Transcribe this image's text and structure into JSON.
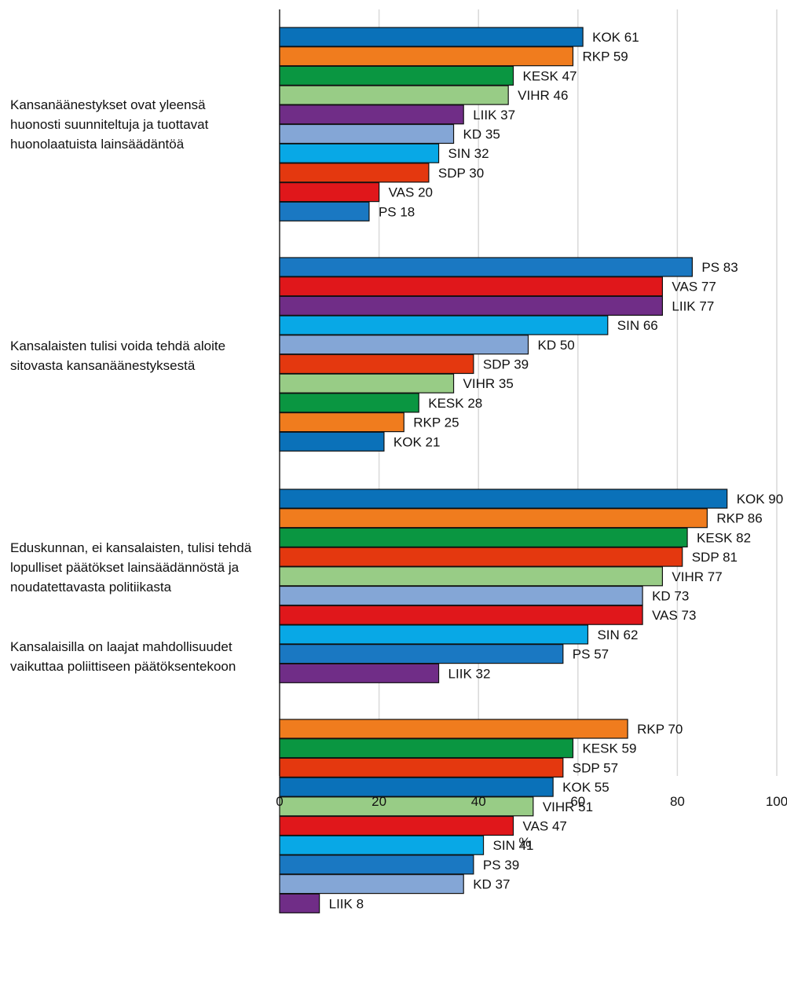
{
  "chart_data": {
    "type": "bar",
    "orientation": "horizontal",
    "xlabel": "%",
    "xlim": [
      0,
      100
    ],
    "xticks": [
      0,
      20,
      40,
      60,
      80,
      100
    ],
    "grid": "vertical",
    "groups": [
      {
        "label": "Kansanäänestykset ovat yleensä huonosti suunniteltuja ja tuottavat huonolaatuista lainsäädäntöä",
        "bars": [
          {
            "party": "KOK",
            "value": 61,
            "text": "KOK  61"
          },
          {
            "party": "RKP",
            "value": 59,
            "text": "RKP 59"
          },
          {
            "party": "KESK",
            "value": 47,
            "text": "KESK 47"
          },
          {
            "party": "VIHR",
            "value": 46,
            "text": "VIHR 46"
          },
          {
            "party": "LIIK",
            "value": 37,
            "text": "LIIK 37"
          },
          {
            "party": "KD",
            "value": 35,
            "text": "KD 35"
          },
          {
            "party": "SIN",
            "value": 32,
            "text": "SIN 32"
          },
          {
            "party": "SDP",
            "value": 30,
            "text": "SDP 30"
          },
          {
            "party": "VAS",
            "value": 20,
            "text": "VAS 20"
          },
          {
            "party": "PS",
            "value": 18,
            "text": "PS 18"
          }
        ]
      },
      {
        "label": "Kansalaisten tulisi voida tehdä aloite sitovasta kansanäänestyksestä",
        "bars": [
          {
            "party": "PS",
            "value": 83,
            "text": "PS 83"
          },
          {
            "party": "VAS",
            "value": 77,
            "text": "VAS 77"
          },
          {
            "party": "LIIK",
            "value": 77,
            "text": "LIIK 77"
          },
          {
            "party": "SIN",
            "value": 66,
            "text": "SIN 66"
          },
          {
            "party": "KD",
            "value": 50,
            "text": "KD 50"
          },
          {
            "party": "SDP",
            "value": 39,
            "text": "SDP 39"
          },
          {
            "party": "VIHR",
            "value": 35,
            "text": "VIHR 35"
          },
          {
            "party": "KESK",
            "value": 28,
            "text": "KESK 28"
          },
          {
            "party": "RKP",
            "value": 25,
            "text": "RKP 25"
          },
          {
            "party": "KOK",
            "value": 21,
            "text": "KOK  21"
          }
        ]
      },
      {
        "label": "Eduskunnan, ei kansalaisten, tulisi tehdä lopulliset päätökset lainsäädännöstä ja noudatettavasta politiikasta",
        "bars": [
          {
            "party": "KOK",
            "value": 90,
            "text": "KOK  90"
          },
          {
            "party": "RKP",
            "value": 86,
            "text": "RKP 86"
          },
          {
            "party": "KESK",
            "value": 82,
            "text": "KESK 82"
          },
          {
            "party": "SDP",
            "value": 81,
            "text": "SDP 81"
          },
          {
            "party": "VIHR",
            "value": 77,
            "text": "VIHR 77"
          },
          {
            "party": "KD",
            "value": 73,
            "text": "KD 73"
          },
          {
            "party": "VAS",
            "value": 73,
            "text": "VAS 73"
          },
          {
            "party": "SIN",
            "value": 62,
            "text": "SIN 62"
          },
          {
            "party": "PS",
            "value": 57,
            "text": "PS 57"
          },
          {
            "party": "LIIK",
            "value": 32,
            "text": "LIIK 32"
          }
        ]
      },
      {
        "label": "Kansalaisilla on laajat mahdollisuudet vaikuttaa poliittiseen päätöksentekoon",
        "bars": [
          {
            "party": "RKP",
            "value": 70,
            "text": "RKP 70"
          },
          {
            "party": "KESK",
            "value": 59,
            "text": "KESK 59"
          },
          {
            "party": "SDP",
            "value": 57,
            "text": "SDP 57"
          },
          {
            "party": "KOK",
            "value": 55,
            "text": "KOK  55"
          },
          {
            "party": "VIHR",
            "value": 51,
            "text": "VIHR 51"
          },
          {
            "party": "VAS",
            "value": 47,
            "text": "VAS 47"
          },
          {
            "party": "SIN",
            "value": 41,
            "text": "SIN 41"
          },
          {
            "party": "PS",
            "value": 39,
            "text": "PS 39"
          },
          {
            "party": "KD",
            "value": 37,
            "text": "KD 37"
          },
          {
            "party": "LIIK",
            "value": 8,
            "text": "LIIK 8"
          }
        ]
      }
    ],
    "colors": {
      "KOK": "#0a71b9",
      "RKP": "#f07c1e",
      "KESK": "#0a9641",
      "VIHR": "#98cc86",
      "LIIK": "#702d87",
      "KD": "#84a6d6",
      "SIN": "#08a8e6",
      "SDP": "#e4380f",
      "VAS": "#e0171b",
      "PS": "#1a78c2"
    }
  }
}
